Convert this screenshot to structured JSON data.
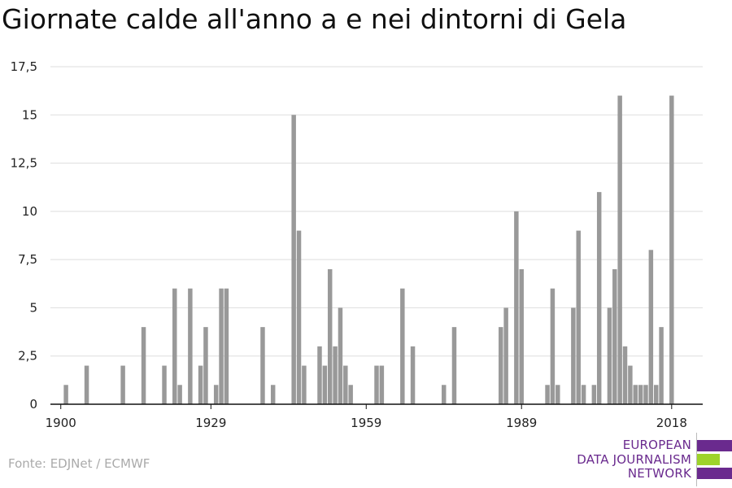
{
  "chart_data": {
    "type": "bar",
    "title": "Giornate calde all'anno a e nei dintorni di Gela",
    "xlabel": "",
    "ylabel": "",
    "xlim": [
      1900,
      2018
    ],
    "ylim": [
      0,
      17.5
    ],
    "x_ticks": [
      "1900",
      "1929",
      "1959",
      "1989",
      "2018"
    ],
    "y_ticks": [
      "0",
      "2,5",
      "5",
      "7,5",
      "10",
      "12,5",
      "15",
      "17,5"
    ],
    "grid": true,
    "color": "#999999",
    "x": [
      1901,
      1905,
      1912,
      1916,
      1920,
      1922,
      1923,
      1925,
      1927,
      1928,
      1930,
      1931,
      1932,
      1939,
      1941,
      1945,
      1946,
      1947,
      1950,
      1951,
      1952,
      1953,
      1954,
      1955,
      1956,
      1961,
      1962,
      1966,
      1968,
      1974,
      1976,
      1985,
      1986,
      1988,
      1989,
      1994,
      1995,
      1996,
      1999,
      2000,
      2001,
      2003,
      2004,
      2006,
      2007,
      2008,
      2009,
      2010,
      2011,
      2012,
      2013,
      2014,
      2015,
      2016,
      2018,
      2020
    ],
    "values": [
      1,
      2,
      2,
      4,
      2,
      6,
      1,
      6,
      2,
      4,
      1,
      6,
      6,
      4,
      1,
      15,
      9,
      2,
      3,
      2,
      7,
      3,
      5,
      2,
      1,
      2,
      2,
      6,
      3,
      1,
      4,
      4,
      5,
      10,
      7,
      1,
      6,
      1,
      5,
      9,
      1,
      1,
      11,
      5,
      7,
      16,
      3,
      2,
      1,
      1,
      1,
      8,
      1,
      4,
      16,
      0
    ]
  },
  "source": "Fonte: EDJNet / ECMWF",
  "logo": {
    "lines": [
      "EUROPEAN",
      "DATA JOURNALISM",
      "NETWORK"
    ],
    "colors": [
      "#6a2a8e",
      "#9ed32b",
      "#6a2a8e"
    ]
  }
}
